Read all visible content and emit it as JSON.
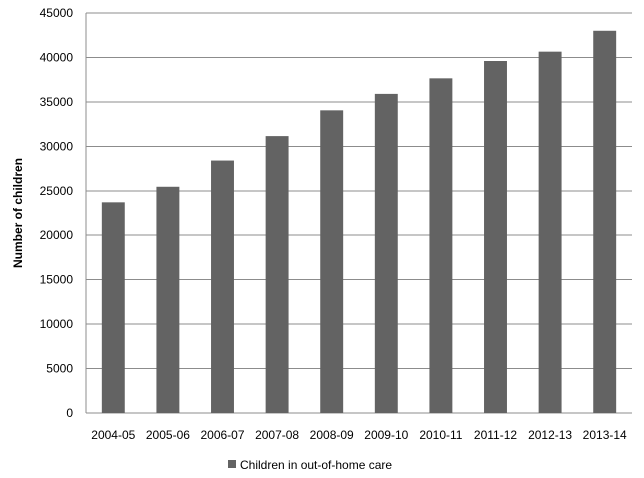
{
  "chart_data": {
    "type": "bar",
    "categories": [
      "2004-05",
      "2005-06",
      "2006-07",
      "2007-08",
      "2008-09",
      "2009-10",
      "2010-11",
      "2011-12",
      "2012-13",
      "2013-14"
    ],
    "series": [
      {
        "name": "Children in out-of-home care",
        "values": [
          23700,
          25450,
          28400,
          31150,
          34050,
          35900,
          37650,
          39600,
          40650,
          43000
        ],
        "color": "#636363"
      }
    ],
    "title": "",
    "xlabel": "",
    "ylabel": "Number of children",
    "ylim": [
      0,
      45000
    ],
    "yticks": [
      0,
      5000,
      10000,
      15000,
      20000,
      25000,
      30000,
      35000,
      40000,
      45000
    ],
    "grid": true,
    "legend": "bottom"
  }
}
